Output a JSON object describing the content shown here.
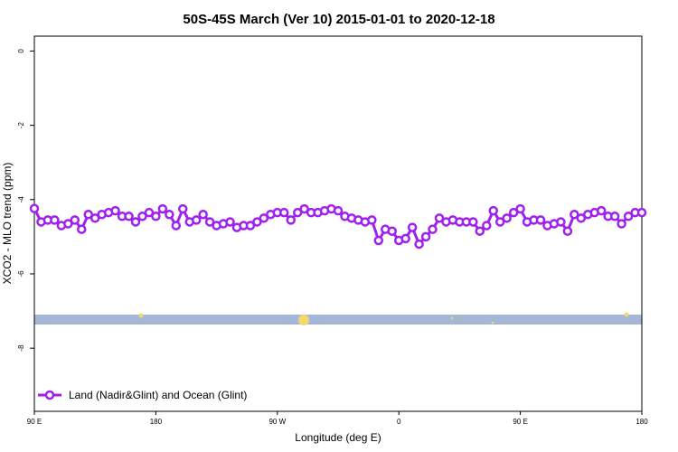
{
  "chart_data": {
    "type": "line",
    "title": "50S-45S March (Ver 10)   2015-01-01 to 2020-12-18",
    "xlabel": "Longitude (deg E)",
    "ylabel": "XCO2 - MLO trend (ppm)",
    "x": [
      90,
      95,
      100,
      105,
      110,
      115,
      120,
      125,
      130,
      135,
      140,
      145,
      150,
      155,
      160,
      165,
      170,
      175,
      180,
      185,
      190,
      195,
      200,
      205,
      210,
      215,
      220,
      225,
      230,
      235,
      240,
      245,
      250,
      255,
      260,
      265,
      270,
      275,
      280,
      285,
      290,
      295,
      300,
      305,
      310,
      315,
      320,
      325,
      330,
      335,
      340,
      345,
      350,
      355,
      360,
      365,
      370,
      375,
      380,
      385,
      390,
      395,
      400,
      405,
      410,
      415,
      420,
      425,
      430,
      435,
      440,
      445,
      450,
      455,
      460,
      465,
      470,
      475,
      480,
      485,
      490,
      495,
      500,
      505,
      510,
      515,
      520,
      525,
      530,
      535,
      540
    ],
    "series": [
      {
        "name": "Land (Nadir&Glint) and Ocean (Glint)",
        "color": "#a020f0",
        "values": [
          -4.24,
          -4.6,
          -4.55,
          -4.55,
          -4.7,
          -4.65,
          -4.55,
          -4.8,
          -4.4,
          -4.5,
          -4.4,
          -4.35,
          -4.3,
          -4.45,
          -4.45,
          -4.6,
          -4.45,
          -4.35,
          -4.45,
          -4.25,
          -4.4,
          -4.7,
          -4.25,
          -4.6,
          -4.55,
          -4.4,
          -4.6,
          -4.7,
          -4.65,
          -4.6,
          -4.75,
          -4.7,
          -4.7,
          -4.6,
          -4.5,
          -4.4,
          -4.35,
          -4.35,
          -4.55,
          -4.35,
          -4.25,
          -4.35,
          -4.35,
          -4.3,
          -4.25,
          -4.3,
          -4.45,
          -4.5,
          -4.55,
          -4.6,
          -4.55,
          -5.1,
          -4.8,
          -4.85,
          -5.1,
          -5.05,
          -4.75,
          -5.2,
          -5.0,
          -4.8,
          -4.5,
          -4.6,
          -4.55,
          -4.6,
          -4.6,
          -4.6,
          -4.85,
          -4.7,
          -4.3,
          -4.6,
          -4.5,
          -4.35,
          -4.25,
          -4.6,
          -4.55,
          -4.55,
          -4.7,
          -4.65,
          -4.6,
          -4.85,
          -4.4,
          -4.5,
          -4.4,
          -4.35,
          -4.3,
          -4.45,
          -4.45,
          -4.65,
          -4.45,
          -4.35,
          -4.35
        ]
      }
    ],
    "xlim": [
      90,
      540
    ],
    "xticks": [
      {
        "value": 90,
        "label": "90 E"
      },
      {
        "value": 180,
        "label": "180"
      },
      {
        "value": 270,
        "label": "90 W"
      },
      {
        "value": 360,
        "label": "0"
      },
      {
        "value": 450,
        "label": "90 E"
      },
      {
        "value": 540,
        "label": "180"
      }
    ],
    "ylim": [
      -9.7,
      0.4
    ],
    "yticks": [
      0,
      -2,
      -4,
      -6,
      -8
    ],
    "legend": "bottom-left"
  }
}
